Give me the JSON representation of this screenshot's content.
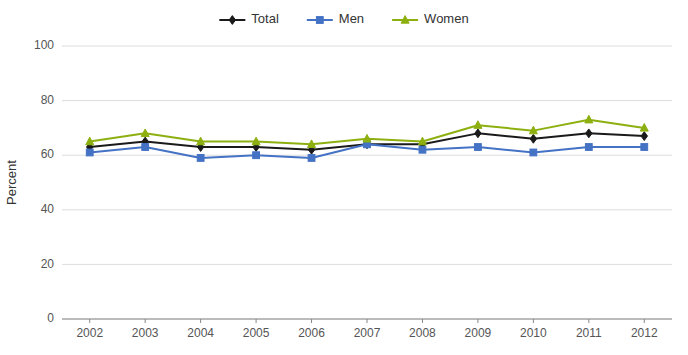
{
  "chart_data": {
    "type": "line",
    "ylabel": "Percent",
    "x": [
      2002,
      2003,
      2004,
      2005,
      2006,
      2007,
      2008,
      2009,
      2010,
      2011,
      2012
    ],
    "xlim": [
      2001.5,
      2012.5
    ],
    "xticks": [
      2002,
      2003,
      2004,
      2005,
      2006,
      2007,
      2008,
      2009,
      2010,
      2011,
      2012
    ],
    "ylim": [
      0,
      100
    ],
    "yticks": [
      0,
      20,
      40,
      60,
      80,
      100
    ],
    "grid": true,
    "legend": "top",
    "series": [
      {
        "name": "Total",
        "color": "#1a1a1a",
        "marker": "diamond",
        "values": [
          63,
          65,
          63,
          63,
          62,
          64,
          64,
          68,
          66,
          68,
          67
        ]
      },
      {
        "name": "Men",
        "color": "#4472c4",
        "marker": "square",
        "values": [
          61,
          63,
          59,
          60,
          59,
          64,
          62,
          63,
          61,
          63,
          63
        ]
      },
      {
        "name": "Women",
        "color": "#8db010",
        "marker": "triangle",
        "values": [
          65,
          68,
          65,
          65,
          64,
          66,
          65,
          71,
          69,
          73,
          70
        ]
      }
    ]
  }
}
